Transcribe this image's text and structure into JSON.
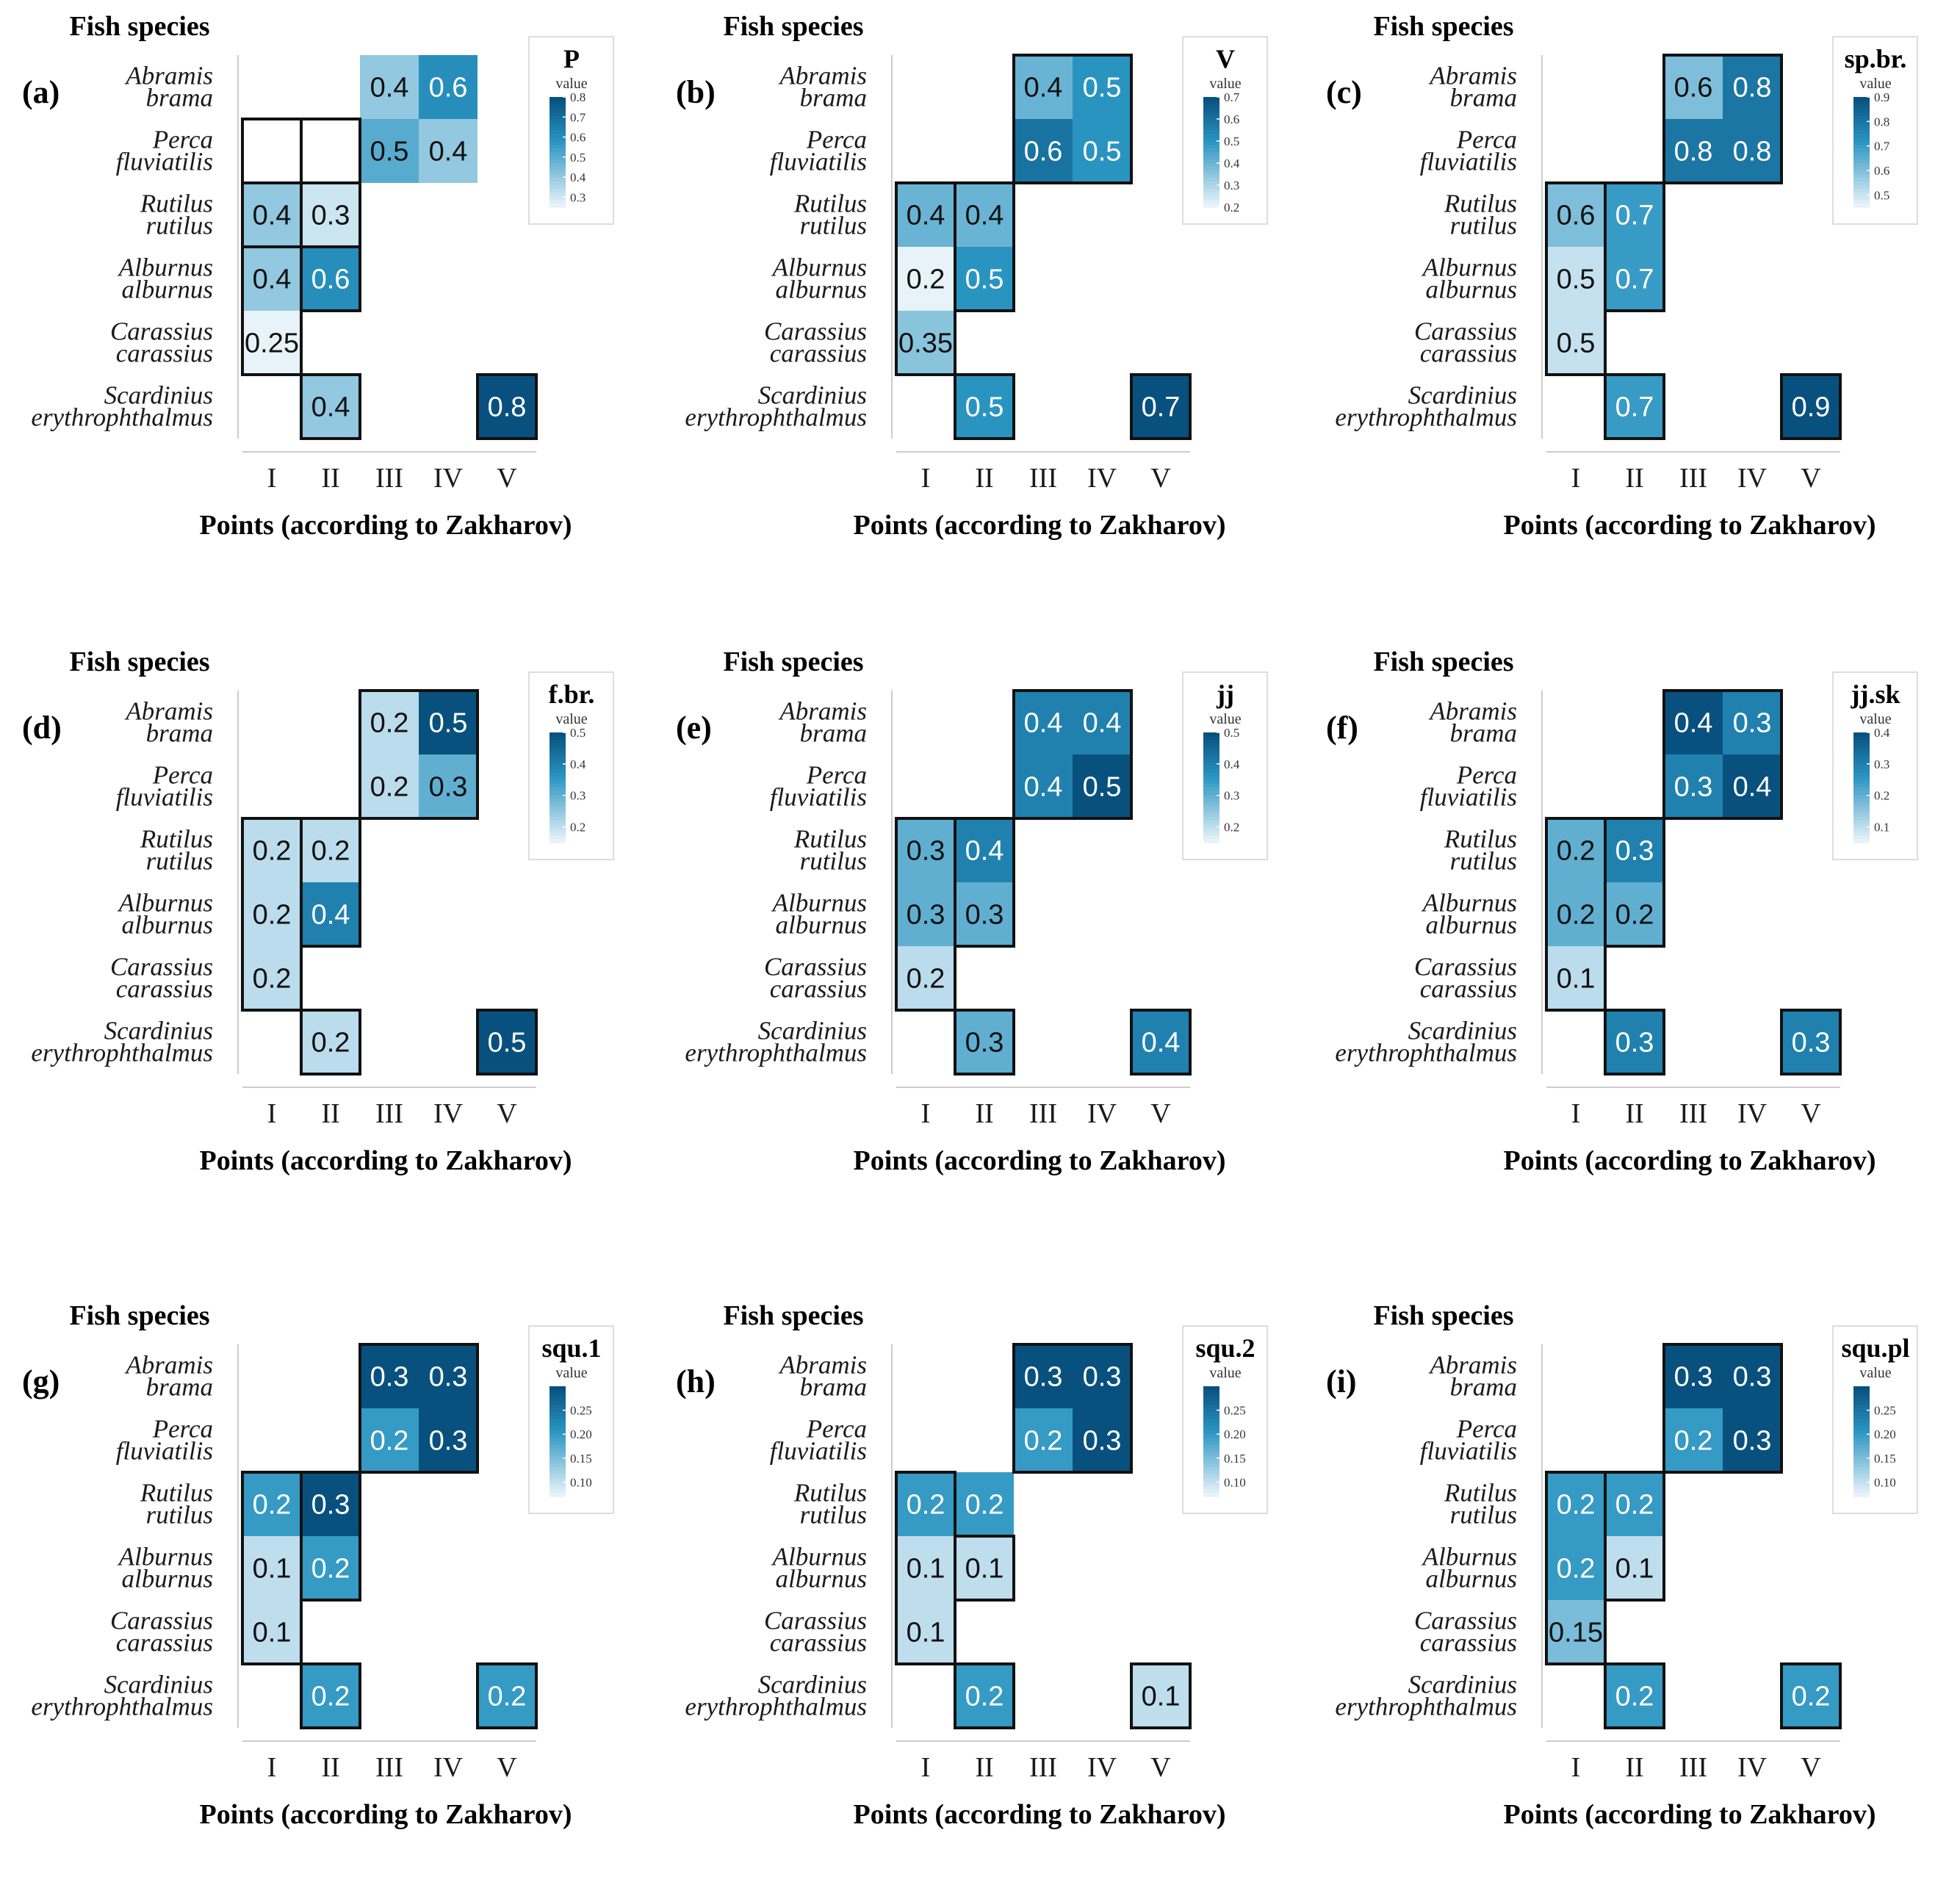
{
  "colors": {
    "low": "#e8f3f9",
    "mid": "#2a94c1",
    "high": "#08517f",
    "border": "#111111",
    "axis": "#cccccc",
    "dark_text": "#111111",
    "light_text": "#ffffff"
  },
  "common": {
    "y_title": "Fish species",
    "x_title": "Points (according to Zakharov)",
    "legend_subtitle": "value",
    "species": [
      [
        "Abramis",
        "brama"
      ],
      [
        "Perca",
        "fluviatilis"
      ],
      [
        "Rutilus",
        "rutilus"
      ],
      [
        "Alburnus",
        "alburnus"
      ],
      [
        "Carassius",
        "carassius"
      ],
      [
        "Scardinius",
        "erythrophthalmus"
      ]
    ],
    "points": [
      "I",
      "II",
      "III",
      "IV",
      "V"
    ]
  },
  "chart_data": [
    {
      "type": "heatmap",
      "panel_label": "(a)",
      "legend_title": "P",
      "legend_ticks": [
        "0.8",
        "0.7",
        "0.6",
        "0.5",
        "0.4",
        "0.3"
      ],
      "vmin": 0.25,
      "vmax": 0.8,
      "cells": [
        {
          "row": 0,
          "col": 2,
          "value": 0.4,
          "label": "0.4"
        },
        {
          "row": 0,
          "col": 3,
          "value": 0.6,
          "label": "0.6"
        },
        {
          "row": 1,
          "col": 2,
          "value": 0.5,
          "label": "0.5"
        },
        {
          "row": 1,
          "col": 3,
          "value": 0.4,
          "label": "0.4"
        },
        {
          "row": 2,
          "col": 0,
          "value": 0.4,
          "label": "0.4"
        },
        {
          "row": 2,
          "col": 1,
          "value": 0.3,
          "label": "0.3"
        },
        {
          "row": 3,
          "col": 0,
          "value": 0.4,
          "label": "0.4"
        },
        {
          "row": 3,
          "col": 1,
          "value": 0.6,
          "label": "0.6"
        },
        {
          "row": 4,
          "col": 0,
          "value": 0.25,
          "label": "0.25"
        },
        {
          "row": 5,
          "col": 1,
          "value": 0.4,
          "label": "0.4"
        },
        {
          "row": 5,
          "col": 4,
          "value": 0.8,
          "label": "0.8"
        }
      ],
      "boxes": [
        [
          2,
          0,
          2,
          1
        ],
        [
          1,
          0,
          4,
          0
        ],
        [
          1,
          1,
          3,
          1
        ],
        [
          5,
          1,
          5,
          1
        ],
        [
          5,
          4,
          5,
          4
        ]
      ]
    },
    {
      "type": "heatmap",
      "panel_label": "(b)",
      "legend_title": "V",
      "legend_ticks": [
        "0.7",
        "0.6",
        "0.5",
        "0.4",
        "0.3",
        "0.2"
      ],
      "vmin": 0.2,
      "vmax": 0.7,
      "cells": [
        {
          "row": 0,
          "col": 2,
          "value": 0.4,
          "label": "0.4"
        },
        {
          "row": 0,
          "col": 3,
          "value": 0.5,
          "label": "0.5"
        },
        {
          "row": 1,
          "col": 2,
          "value": 0.6,
          "label": "0.6"
        },
        {
          "row": 1,
          "col": 3,
          "value": 0.5,
          "label": "0.5"
        },
        {
          "row": 2,
          "col": 0,
          "value": 0.4,
          "label": "0.4"
        },
        {
          "row": 2,
          "col": 1,
          "value": 0.4,
          "label": "0.4"
        },
        {
          "row": 3,
          "col": 0,
          "value": 0.2,
          "label": "0.2"
        },
        {
          "row": 3,
          "col": 1,
          "value": 0.5,
          "label": "0.5"
        },
        {
          "row": 4,
          "col": 0,
          "value": 0.35,
          "label": "0.35"
        },
        {
          "row": 5,
          "col": 1,
          "value": 0.5,
          "label": "0.5"
        },
        {
          "row": 5,
          "col": 4,
          "value": 0.7,
          "label": "0.7"
        }
      ],
      "boxes": [
        [
          0,
          2,
          1,
          3
        ],
        [
          2,
          0,
          4,
          0
        ],
        [
          2,
          1,
          3,
          1
        ],
        [
          5,
          1,
          5,
          1
        ],
        [
          5,
          4,
          5,
          4
        ]
      ]
    },
    {
      "type": "heatmap",
      "panel_label": "(c)",
      "legend_title": "sp.br.",
      "legend_ticks": [
        "0.9",
        "0.8",
        "0.7",
        "0.6",
        "0.5"
      ],
      "vmin": 0.45,
      "vmax": 0.9,
      "cells": [
        {
          "row": 0,
          "col": 2,
          "value": 0.6,
          "label": "0.6"
        },
        {
          "row": 0,
          "col": 3,
          "value": 0.8,
          "label": "0.8"
        },
        {
          "row": 1,
          "col": 2,
          "value": 0.8,
          "label": "0.8"
        },
        {
          "row": 1,
          "col": 3,
          "value": 0.8,
          "label": "0.8"
        },
        {
          "row": 2,
          "col": 0,
          "value": 0.6,
          "label": "0.6"
        },
        {
          "row": 2,
          "col": 1,
          "value": 0.7,
          "label": "0.7"
        },
        {
          "row": 3,
          "col": 0,
          "value": 0.5,
          "label": "0.5"
        },
        {
          "row": 3,
          "col": 1,
          "value": 0.7,
          "label": "0.7"
        },
        {
          "row": 4,
          "col": 0,
          "value": 0.5,
          "label": "0.5"
        },
        {
          "row": 5,
          "col": 1,
          "value": 0.7,
          "label": "0.7"
        },
        {
          "row": 5,
          "col": 4,
          "value": 0.9,
          "label": "0.9"
        }
      ],
      "boxes": [
        [
          0,
          2,
          1,
          3
        ],
        [
          2,
          0,
          4,
          0
        ],
        [
          2,
          1,
          3,
          1
        ],
        [
          5,
          1,
          5,
          1
        ],
        [
          5,
          4,
          5,
          4
        ]
      ]
    },
    {
      "type": "heatmap",
      "panel_label": "(d)",
      "legend_title": "f.br.",
      "legend_ticks": [
        "0.5",
        "0.4",
        "0.3",
        "0.2"
      ],
      "vmin": 0.15,
      "vmax": 0.5,
      "cells": [
        {
          "row": 0,
          "col": 2,
          "value": 0.2,
          "label": "0.2"
        },
        {
          "row": 0,
          "col": 3,
          "value": 0.5,
          "label": "0.5"
        },
        {
          "row": 1,
          "col": 2,
          "value": 0.2,
          "label": "0.2"
        },
        {
          "row": 1,
          "col": 3,
          "value": 0.3,
          "label": "0.3"
        },
        {
          "row": 2,
          "col": 0,
          "value": 0.2,
          "label": "0.2"
        },
        {
          "row": 2,
          "col": 1,
          "value": 0.2,
          "label": "0.2"
        },
        {
          "row": 3,
          "col": 0,
          "value": 0.2,
          "label": "0.2"
        },
        {
          "row": 3,
          "col": 1,
          "value": 0.4,
          "label": "0.4"
        },
        {
          "row": 4,
          "col": 0,
          "value": 0.2,
          "label": "0.2"
        },
        {
          "row": 5,
          "col": 1,
          "value": 0.2,
          "label": "0.2"
        },
        {
          "row": 5,
          "col": 4,
          "value": 0.5,
          "label": "0.5"
        }
      ],
      "boxes": [
        [
          0,
          2,
          1,
          3
        ],
        [
          2,
          0,
          4,
          0
        ],
        [
          2,
          1,
          3,
          1
        ],
        [
          5,
          1,
          5,
          1
        ],
        [
          5,
          4,
          5,
          4
        ]
      ]
    },
    {
      "type": "heatmap",
      "panel_label": "(e)",
      "legend_title": "jj",
      "legend_ticks": [
        "0.5",
        "0.4",
        "0.3",
        "0.2"
      ],
      "vmin": 0.15,
      "vmax": 0.5,
      "cells": [
        {
          "row": 0,
          "col": 2,
          "value": 0.4,
          "label": "0.4"
        },
        {
          "row": 0,
          "col": 3,
          "value": 0.4,
          "label": "0.4"
        },
        {
          "row": 1,
          "col": 2,
          "value": 0.4,
          "label": "0.4"
        },
        {
          "row": 1,
          "col": 3,
          "value": 0.5,
          "label": "0.5"
        },
        {
          "row": 2,
          "col": 0,
          "value": 0.3,
          "label": "0.3"
        },
        {
          "row": 2,
          "col": 1,
          "value": 0.4,
          "label": "0.4"
        },
        {
          "row": 3,
          "col": 0,
          "value": 0.3,
          "label": "0.3"
        },
        {
          "row": 3,
          "col": 1,
          "value": 0.3,
          "label": "0.3"
        },
        {
          "row": 4,
          "col": 0,
          "value": 0.2,
          "label": "0.2"
        },
        {
          "row": 5,
          "col": 1,
          "value": 0.3,
          "label": "0.3"
        },
        {
          "row": 5,
          "col": 4,
          "value": 0.4,
          "label": "0.4"
        }
      ],
      "boxes": [
        [
          0,
          2,
          1,
          3
        ],
        [
          2,
          0,
          4,
          0
        ],
        [
          2,
          1,
          3,
          1
        ],
        [
          5,
          1,
          5,
          1
        ],
        [
          5,
          4,
          5,
          4
        ]
      ]
    },
    {
      "type": "heatmap",
      "panel_label": "(f)",
      "legend_title": "jj.sk",
      "legend_ticks": [
        "0.4",
        "0.3",
        "0.2",
        "0.1"
      ],
      "vmin": 0.05,
      "vmax": 0.4,
      "cells": [
        {
          "row": 0,
          "col": 2,
          "value": 0.4,
          "label": "0.4"
        },
        {
          "row": 0,
          "col": 3,
          "value": 0.3,
          "label": "0.3"
        },
        {
          "row": 1,
          "col": 2,
          "value": 0.3,
          "label": "0.3"
        },
        {
          "row": 1,
          "col": 3,
          "value": 0.4,
          "label": "0.4"
        },
        {
          "row": 2,
          "col": 0,
          "value": 0.2,
          "label": "0.2"
        },
        {
          "row": 2,
          "col": 1,
          "value": 0.3,
          "label": "0.3"
        },
        {
          "row": 3,
          "col": 0,
          "value": 0.2,
          "label": "0.2"
        },
        {
          "row": 3,
          "col": 1,
          "value": 0.2,
          "label": "0.2"
        },
        {
          "row": 4,
          "col": 0,
          "value": 0.1,
          "label": "0.1"
        },
        {
          "row": 5,
          "col": 1,
          "value": 0.3,
          "label": "0.3"
        },
        {
          "row": 5,
          "col": 4,
          "value": 0.3,
          "label": "0.3"
        }
      ],
      "boxes": [
        [
          0,
          2,
          1,
          3
        ],
        [
          2,
          0,
          4,
          0
        ],
        [
          2,
          1,
          3,
          1
        ],
        [
          5,
          1,
          5,
          1
        ],
        [
          5,
          4,
          5,
          4
        ]
      ]
    },
    {
      "type": "heatmap",
      "panel_label": "(g)",
      "legend_title": "squ.1",
      "legend_ticks": [
        "0.25",
        "0.20",
        "0.15",
        "0.10"
      ],
      "vmin": 0.07,
      "vmax": 0.3,
      "cells": [
        {
          "row": 0,
          "col": 2,
          "value": 0.3,
          "label": "0.3"
        },
        {
          "row": 0,
          "col": 3,
          "value": 0.3,
          "label": "0.3"
        },
        {
          "row": 1,
          "col": 2,
          "value": 0.2,
          "label": "0.2"
        },
        {
          "row": 1,
          "col": 3,
          "value": 0.3,
          "label": "0.3"
        },
        {
          "row": 2,
          "col": 0,
          "value": 0.2,
          "label": "0.2"
        },
        {
          "row": 2,
          "col": 1,
          "value": 0.3,
          "label": "0.3"
        },
        {
          "row": 3,
          "col": 0,
          "value": 0.1,
          "label": "0.1"
        },
        {
          "row": 3,
          "col": 1,
          "value": 0.2,
          "label": "0.2"
        },
        {
          "row": 4,
          "col": 0,
          "value": 0.1,
          "label": "0.1"
        },
        {
          "row": 5,
          "col": 1,
          "value": 0.2,
          "label": "0.2"
        },
        {
          "row": 5,
          "col": 4,
          "value": 0.2,
          "label": "0.2"
        }
      ],
      "boxes": [
        [
          0,
          2,
          1,
          3
        ],
        [
          2,
          0,
          4,
          0
        ],
        [
          2,
          1,
          3,
          1
        ],
        [
          5,
          1,
          5,
          1
        ],
        [
          5,
          4,
          5,
          4
        ]
      ]
    },
    {
      "type": "heatmap",
      "panel_label": "(h)",
      "legend_title": "squ.2",
      "legend_ticks": [
        "0.25",
        "0.20",
        "0.15",
        "0.10"
      ],
      "vmin": 0.07,
      "vmax": 0.3,
      "cells": [
        {
          "row": 0,
          "col": 2,
          "value": 0.3,
          "label": "0.3"
        },
        {
          "row": 0,
          "col": 3,
          "value": 0.3,
          "label": "0.3"
        },
        {
          "row": 1,
          "col": 2,
          "value": 0.2,
          "label": "0.2"
        },
        {
          "row": 1,
          "col": 3,
          "value": 0.3,
          "label": "0.3"
        },
        {
          "row": 2,
          "col": 0,
          "value": 0.2,
          "label": "0.2"
        },
        {
          "row": 2,
          "col": 1,
          "value": 0.2,
          "label": "0.2"
        },
        {
          "row": 3,
          "col": 0,
          "value": 0.1,
          "label": "0.1"
        },
        {
          "row": 3,
          "col": 1,
          "value": 0.1,
          "label": "0.1"
        },
        {
          "row": 4,
          "col": 0,
          "value": 0.1,
          "label": "0.1"
        },
        {
          "row": 5,
          "col": 1,
          "value": 0.2,
          "label": "0.2"
        },
        {
          "row": 5,
          "col": 4,
          "value": 0.1,
          "label": "0.1"
        }
      ],
      "boxes": [
        [
          0,
          2,
          1,
          3
        ],
        [
          2,
          0,
          4,
          0
        ],
        [
          3,
          1,
          3,
          1
        ],
        [
          5,
          1,
          5,
          1
        ],
        [
          5,
          4,
          5,
          4
        ]
      ]
    },
    {
      "type": "heatmap",
      "panel_label": "(i)",
      "legend_title": "squ.pl",
      "legend_ticks": [
        "0.25",
        "0.20",
        "0.15",
        "0.10"
      ],
      "vmin": 0.07,
      "vmax": 0.3,
      "cells": [
        {
          "row": 0,
          "col": 2,
          "value": 0.3,
          "label": "0.3"
        },
        {
          "row": 0,
          "col": 3,
          "value": 0.3,
          "label": "0.3"
        },
        {
          "row": 1,
          "col": 2,
          "value": 0.2,
          "label": "0.2"
        },
        {
          "row": 1,
          "col": 3,
          "value": 0.3,
          "label": "0.3"
        },
        {
          "row": 2,
          "col": 0,
          "value": 0.2,
          "label": "0.2"
        },
        {
          "row": 2,
          "col": 1,
          "value": 0.2,
          "label": "0.2"
        },
        {
          "row": 3,
          "col": 0,
          "value": 0.2,
          "label": "0.2"
        },
        {
          "row": 3,
          "col": 1,
          "value": 0.1,
          "label": "0.1"
        },
        {
          "row": 4,
          "col": 0,
          "value": 0.15,
          "label": "0.15"
        },
        {
          "row": 5,
          "col": 1,
          "value": 0.2,
          "label": "0.2"
        },
        {
          "row": 5,
          "col": 4,
          "value": 0.2,
          "label": "0.2"
        }
      ],
      "boxes": [
        [
          0,
          2,
          1,
          3
        ],
        [
          2,
          0,
          4,
          0
        ],
        [
          2,
          1,
          3,
          1
        ],
        [
          5,
          1,
          5,
          1
        ],
        [
          5,
          4,
          5,
          4
        ]
      ]
    }
  ]
}
